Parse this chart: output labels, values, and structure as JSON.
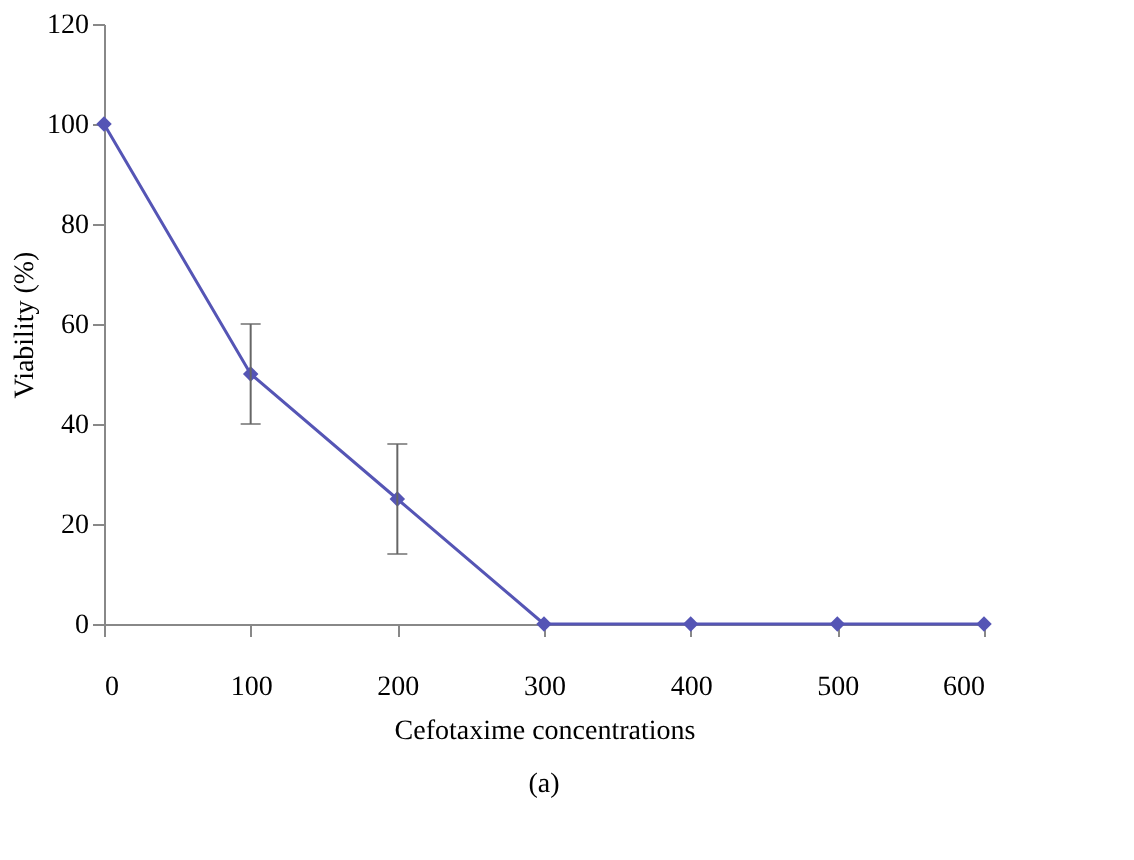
{
  "chart_data": {
    "type": "line",
    "xlabel": "Cefotaxime concentrations",
    "ylabel": "Viability (%)",
    "annotations": [
      "(a)"
    ],
    "x": [
      0,
      100,
      200,
      300,
      400,
      500,
      600
    ],
    "series": [
      {
        "color": "#5555b5",
        "values": [
          100,
          50,
          25,
          0,
          0,
          0,
          0
        ],
        "errors": [
          null,
          [
            40,
            60
          ],
          [
            14,
            36
          ],
          null,
          null,
          null,
          null
        ]
      }
    ],
    "xlim": [
      0,
      600
    ],
    "xticks": [
      0,
      100,
      200,
      300,
      400,
      500,
      600
    ],
    "ylim": [
      0,
      120
    ],
    "yticks": [
      0,
      20,
      40,
      60,
      80,
      100,
      120
    ],
    "grid": false,
    "marker": "diamond",
    "line_style": "solid"
  }
}
